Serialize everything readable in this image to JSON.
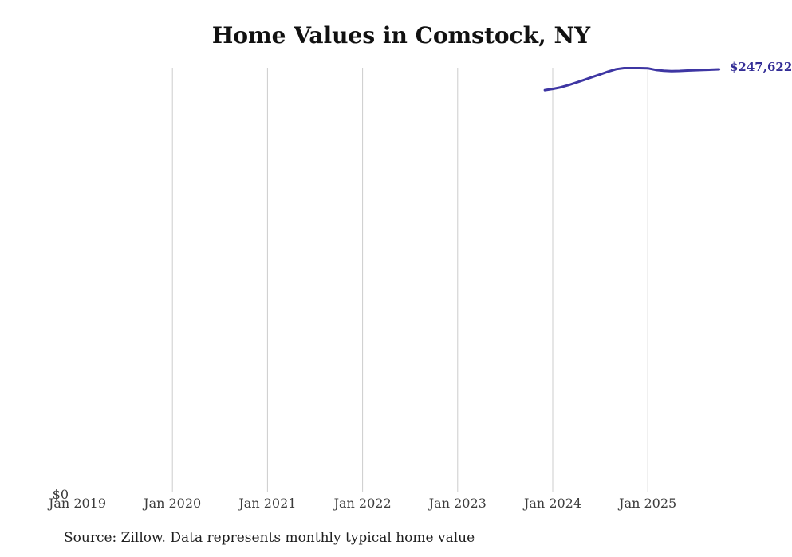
{
  "chart_data": {
    "type": "line",
    "title": "Home Values in Comstock, NY",
    "source_note": "Source: Zillow. Data represents monthly typical home value",
    "y_zero_label": "$0",
    "end_label": "$247,622",
    "x_ticks": [
      {
        "label": "Jan 2019",
        "month": "2019-01",
        "gridline": false
      },
      {
        "label": "Jan 2020",
        "month": "2020-01",
        "gridline": true
      },
      {
        "label": "Jan 2021",
        "month": "2021-01",
        "gridline": true
      },
      {
        "label": "Jan 2022",
        "month": "2022-01",
        "gridline": true
      },
      {
        "label": "Jan 2023",
        "month": "2023-01",
        "gridline": true
      },
      {
        "label": "Jan 2024",
        "month": "2024-01",
        "gridline": true
      },
      {
        "label": "Jan 2025",
        "month": "2025-01",
        "gridline": true
      }
    ],
    "x": [
      "2023-12",
      "2024-01",
      "2024-02",
      "2024-03",
      "2024-04",
      "2024-05",
      "2024-06",
      "2024-07",
      "2024-08",
      "2024-09",
      "2024-10",
      "2024-11",
      "2024-12",
      "2025-01",
      "2025-02",
      "2025-03",
      "2025-04",
      "2025-05",
      "2025-06",
      "2025-07",
      "2025-08",
      "2025-09",
      "2025-10"
    ],
    "values": [
      235500,
      236200,
      237100,
      238400,
      239900,
      241500,
      243100,
      244700,
      246300,
      247700,
      248300,
      248300,
      248300,
      248200,
      247300,
      246800,
      246600,
      246700,
      246900,
      247100,
      247300,
      247450,
      247622
    ],
    "ylim": [
      0,
      250000
    ],
    "x_range_months": [
      "2019-01",
      "2025-10"
    ],
    "grid": "vertical-only",
    "legend": "none",
    "colors": {
      "line": "#3e36a3",
      "end_label": "#332d96",
      "gridline": "#cccccc",
      "axis_text": "#3c3c3c",
      "title_text": "#111111",
      "source_text": "#1f1f1f"
    }
  }
}
